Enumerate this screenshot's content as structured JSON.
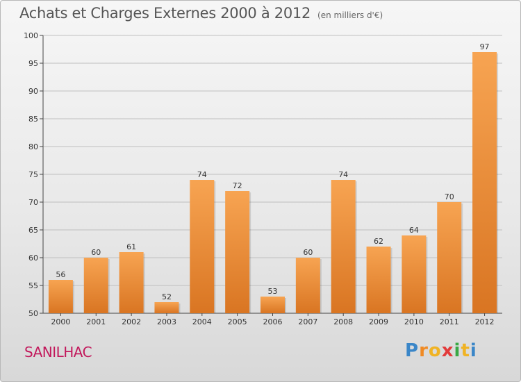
{
  "header": {
    "title": "Achats et Charges Externes 2000 à 2012",
    "subtitle": "(en milliers d'€)"
  },
  "footer": {
    "commune": "SANILHAC",
    "logo_letters": [
      "P",
      "r",
      "o",
      "x",
      "i",
      "t",
      "i"
    ]
  },
  "colors": {
    "bar_light": "#f7a452",
    "bar_dark": "#d97522",
    "commune_text": "#c2185b",
    "grid": "#bfbfbf"
  },
  "chart_data": {
    "type": "bar",
    "title": "Achats et Charges Externes 2000 à 2012",
    "subtitle": "(en milliers d'€)",
    "categories": [
      "2000",
      "2001",
      "2002",
      "2003",
      "2004",
      "2005",
      "2006",
      "2007",
      "2008",
      "2009",
      "2010",
      "2011",
      "2012"
    ],
    "values": [
      56,
      60,
      61,
      52,
      74,
      72,
      53,
      60,
      74,
      62,
      64,
      70,
      97
    ],
    "ylim": [
      50,
      100
    ],
    "yticks": [
      50,
      55,
      60,
      65,
      70,
      75,
      80,
      85,
      90,
      95,
      100
    ],
    "grid": true,
    "xlabel": "",
    "ylabel": ""
  }
}
